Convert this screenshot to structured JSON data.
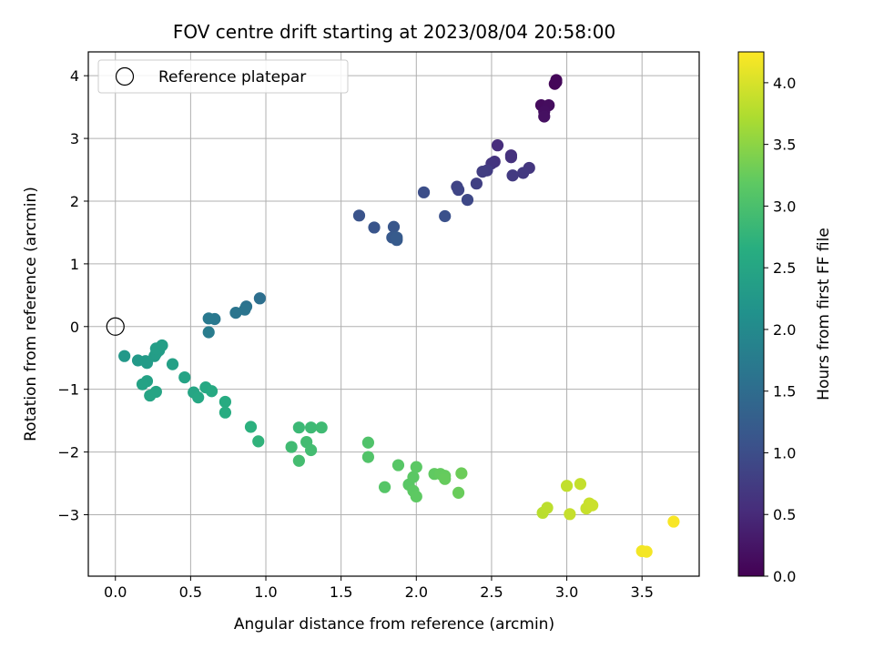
{
  "chart_data": {
    "type": "scatter",
    "title": "FOV centre drift starting at 2023/08/04 20:58:00",
    "xlabel": "Angular distance from reference (arcmin)",
    "ylabel": "Rotation from reference (arcmin)",
    "xlim": [
      -0.18,
      3.88
    ],
    "ylim": [
      -3.98,
      4.38
    ],
    "x_ticks": [
      0.0,
      0.5,
      1.0,
      1.5,
      2.0,
      2.5,
      3.0,
      3.5
    ],
    "x_tick_labels": [
      "0.0",
      "0.5",
      "1.0",
      "1.5",
      "2.0",
      "2.5",
      "3.0",
      "3.5"
    ],
    "y_ticks": [
      -3,
      -2,
      -1,
      0,
      1,
      2,
      3,
      4
    ],
    "y_tick_labels": [
      "−3",
      "−2",
      "−1",
      "0",
      "1",
      "2",
      "3",
      "4"
    ],
    "grid": true,
    "legend": {
      "position": "top-left",
      "entries": [
        "Reference platepar"
      ]
    },
    "reference_point": {
      "x": 0.0,
      "y": 0.0
    },
    "colormap": "viridis",
    "colorbar": {
      "label": "Hours from first FF file",
      "range": [
        0.0,
        4.25
      ],
      "ticks": [
        0.0,
        0.5,
        1.0,
        1.5,
        2.0,
        2.5,
        3.0,
        3.5,
        4.0
      ],
      "tick_labels": [
        "0.0",
        "0.5",
        "1.0",
        "1.5",
        "2.0",
        "2.5",
        "3.0",
        "3.5",
        "4.0"
      ]
    },
    "points": [
      {
        "x": 2.93,
        "y": 3.93,
        "c": 0.05
      },
      {
        "x": 2.92,
        "y": 3.87,
        "c": 0.06
      },
      {
        "x": 2.93,
        "y": 3.9,
        "c": 0.07
      },
      {
        "x": 2.83,
        "y": 3.53,
        "c": 0.12
      },
      {
        "x": 2.88,
        "y": 3.53,
        "c": 0.14
      },
      {
        "x": 2.85,
        "y": 3.43,
        "c": 0.16
      },
      {
        "x": 2.85,
        "y": 3.35,
        "c": 0.18
      },
      {
        "x": 2.54,
        "y": 2.89,
        "c": 0.55
      },
      {
        "x": 2.63,
        "y": 2.73,
        "c": 0.58
      },
      {
        "x": 2.63,
        "y": 2.7,
        "c": 0.6
      },
      {
        "x": 2.52,
        "y": 2.63,
        "c": 0.62
      },
      {
        "x": 2.5,
        "y": 2.6,
        "c": 0.65
      },
      {
        "x": 2.75,
        "y": 2.53,
        "c": 0.68
      },
      {
        "x": 2.71,
        "y": 2.45,
        "c": 0.7
      },
      {
        "x": 2.64,
        "y": 2.41,
        "c": 0.72
      },
      {
        "x": 2.47,
        "y": 2.49,
        "c": 0.75
      },
      {
        "x": 2.44,
        "y": 2.47,
        "c": 0.77
      },
      {
        "x": 2.4,
        "y": 2.28,
        "c": 0.8
      },
      {
        "x": 2.27,
        "y": 2.23,
        "c": 0.85
      },
      {
        "x": 2.28,
        "y": 2.18,
        "c": 0.88
      },
      {
        "x": 2.34,
        "y": 2.02,
        "c": 0.92
      },
      {
        "x": 2.05,
        "y": 2.14,
        "c": 1.0
      },
      {
        "x": 2.19,
        "y": 1.76,
        "c": 1.05
      },
      {
        "x": 1.62,
        "y": 1.77,
        "c": 1.1
      },
      {
        "x": 1.72,
        "y": 1.58,
        "c": 1.12
      },
      {
        "x": 1.85,
        "y": 1.59,
        "c": 1.15
      },
      {
        "x": 1.84,
        "y": 1.42,
        "c": 1.18
      },
      {
        "x": 1.87,
        "y": 1.38,
        "c": 1.2
      },
      {
        "x": 1.87,
        "y": 1.42,
        "c": 1.21
      },
      {
        "x": 0.96,
        "y": 0.45,
        "c": 1.55
      },
      {
        "x": 0.87,
        "y": 0.32,
        "c": 1.6
      },
      {
        "x": 0.86,
        "y": 0.27,
        "c": 1.62
      },
      {
        "x": 0.8,
        "y": 0.22,
        "c": 1.65
      },
      {
        "x": 0.66,
        "y": 0.12,
        "c": 1.7
      },
      {
        "x": 0.62,
        "y": 0.13,
        "c": 1.72
      },
      {
        "x": 0.62,
        "y": -0.09,
        "c": 1.76
      },
      {
        "x": 0.06,
        "y": -0.47,
        "c": 2.25
      },
      {
        "x": 0.15,
        "y": -0.54,
        "c": 2.28
      },
      {
        "x": 0.21,
        "y": -0.58,
        "c": 2.3
      },
      {
        "x": 0.2,
        "y": -0.55,
        "c": 2.31
      },
      {
        "x": 0.26,
        "y": -0.47,
        "c": 2.33
      },
      {
        "x": 0.27,
        "y": -0.43,
        "c": 2.34
      },
      {
        "x": 0.29,
        "y": -0.38,
        "c": 2.35
      },
      {
        "x": 0.27,
        "y": -0.35,
        "c": 2.36
      },
      {
        "x": 0.31,
        "y": -0.3,
        "c": 2.37
      },
      {
        "x": 0.38,
        "y": -0.6,
        "c": 2.4
      },
      {
        "x": 0.46,
        "y": -0.81,
        "c": 2.45
      },
      {
        "x": 0.21,
        "y": -0.87,
        "c": 2.42
      },
      {
        "x": 0.18,
        "y": -0.92,
        "c": 2.43
      },
      {
        "x": 0.27,
        "y": -1.04,
        "c": 2.47
      },
      {
        "x": 0.23,
        "y": -1.1,
        "c": 2.48
      },
      {
        "x": 0.52,
        "y": -1.05,
        "c": 2.5
      },
      {
        "x": 0.55,
        "y": -1.13,
        "c": 2.52
      },
      {
        "x": 0.6,
        "y": -0.97,
        "c": 2.54
      },
      {
        "x": 0.64,
        "y": -1.03,
        "c": 2.56
      },
      {
        "x": 0.73,
        "y": -1.2,
        "c": 2.6
      },
      {
        "x": 0.73,
        "y": -1.37,
        "c": 2.62
      },
      {
        "x": 0.9,
        "y": -1.6,
        "c": 2.7
      },
      {
        "x": 0.95,
        "y": -1.83,
        "c": 2.74
      },
      {
        "x": 1.22,
        "y": -1.61,
        "c": 2.85
      },
      {
        "x": 1.3,
        "y": -1.61,
        "c": 2.87
      },
      {
        "x": 1.37,
        "y": -1.61,
        "c": 2.89
      },
      {
        "x": 1.17,
        "y": -1.92,
        "c": 2.9
      },
      {
        "x": 1.27,
        "y": -1.84,
        "c": 2.92
      },
      {
        "x": 1.3,
        "y": -1.97,
        "c": 2.93
      },
      {
        "x": 1.22,
        "y": -2.14,
        "c": 2.94
      },
      {
        "x": 1.68,
        "y": -1.85,
        "c": 3.05
      },
      {
        "x": 1.68,
        "y": -2.08,
        "c": 3.07
      },
      {
        "x": 1.79,
        "y": -2.56,
        "c": 3.1
      },
      {
        "x": 1.88,
        "y": -2.21,
        "c": 3.12
      },
      {
        "x": 1.95,
        "y": -2.52,
        "c": 3.14
      },
      {
        "x": 1.98,
        "y": -2.4,
        "c": 3.15
      },
      {
        "x": 2.0,
        "y": -2.24,
        "c": 3.16
      },
      {
        "x": 1.98,
        "y": -2.62,
        "c": 3.17
      },
      {
        "x": 2.0,
        "y": -2.71,
        "c": 3.18
      },
      {
        "x": 2.12,
        "y": -2.35,
        "c": 3.2
      },
      {
        "x": 2.16,
        "y": -2.35,
        "c": 3.22
      },
      {
        "x": 2.19,
        "y": -2.38,
        "c": 3.23
      },
      {
        "x": 2.19,
        "y": -2.43,
        "c": 3.24
      },
      {
        "x": 2.28,
        "y": -2.65,
        "c": 3.26
      },
      {
        "x": 2.3,
        "y": -2.34,
        "c": 3.28
      },
      {
        "x": 2.84,
        "y": -2.97,
        "c": 3.8
      },
      {
        "x": 2.87,
        "y": -2.89,
        "c": 3.82
      },
      {
        "x": 3.0,
        "y": -2.54,
        "c": 3.85
      },
      {
        "x": 3.09,
        "y": -2.51,
        "c": 3.87
      },
      {
        "x": 3.02,
        "y": -2.99,
        "c": 3.88
      },
      {
        "x": 3.13,
        "y": -2.9,
        "c": 3.89
      },
      {
        "x": 3.15,
        "y": -2.82,
        "c": 3.9
      },
      {
        "x": 3.17,
        "y": -2.85,
        "c": 3.91
      },
      {
        "x": 3.5,
        "y": -3.58,
        "c": 4.18
      },
      {
        "x": 3.53,
        "y": -3.59,
        "c": 4.19
      },
      {
        "x": 3.71,
        "y": -3.11,
        "c": 4.22
      }
    ]
  }
}
